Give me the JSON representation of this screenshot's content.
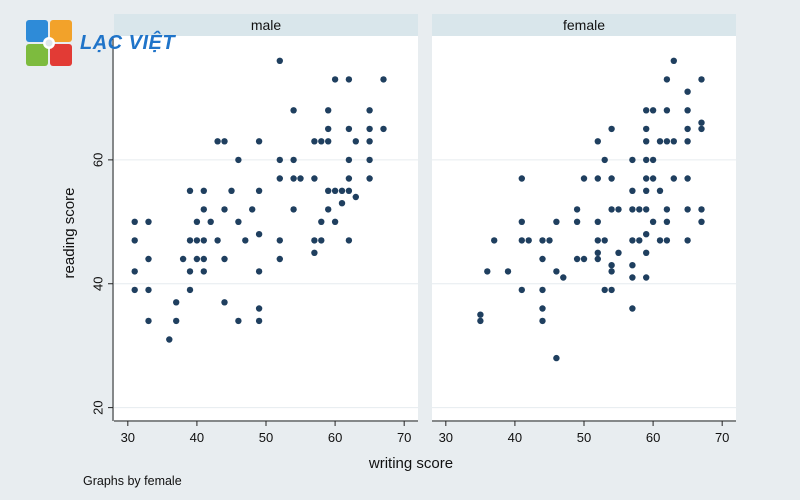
{
  "logo": {
    "text": "LẠC VIỆT",
    "colors": [
      "#2e8bd8",
      "#f2a22a",
      "#7dbb3e",
      "#e23b35"
    ]
  },
  "footnote": "Graphs by female",
  "chart_data": {
    "type": "scatter",
    "xlabel": "writing score",
    "ylabel": "reading score",
    "xlim": [
      28,
      72
    ],
    "ylim": [
      18,
      80
    ],
    "xticks": [
      30,
      40,
      50,
      60,
      70
    ],
    "yticks": [
      20,
      40,
      60
    ],
    "grid": true,
    "marker_color": "#1f3f5f",
    "panel_header_color": "#d9e6eb",
    "panels": [
      {
        "title": "male",
        "points": [
          [
            31,
            50
          ],
          [
            31,
            47
          ],
          [
            31,
            42
          ],
          [
            31,
            39
          ],
          [
            33,
            50
          ],
          [
            33,
            44
          ],
          [
            33,
            39
          ],
          [
            33,
            34
          ],
          [
            36,
            31
          ],
          [
            37,
            37
          ],
          [
            37,
            34
          ],
          [
            38,
            44
          ],
          [
            39,
            47
          ],
          [
            39,
            42
          ],
          [
            39,
            39
          ],
          [
            39,
            55
          ],
          [
            40,
            50
          ],
          [
            40,
            47
          ],
          [
            40,
            44
          ],
          [
            41,
            55
          ],
          [
            41,
            52
          ],
          [
            41,
            47
          ],
          [
            41,
            44
          ],
          [
            41,
            42
          ],
          [
            42,
            50
          ],
          [
            43,
            63
          ],
          [
            43,
            47
          ],
          [
            44,
            63
          ],
          [
            44,
            52
          ],
          [
            44,
            44
          ],
          [
            44,
            37
          ],
          [
            45,
            55
          ],
          [
            46,
            60
          ],
          [
            46,
            50
          ],
          [
            46,
            34
          ],
          [
            47,
            47
          ],
          [
            48,
            52
          ],
          [
            49,
            63
          ],
          [
            49,
            55
          ],
          [
            49,
            48
          ],
          [
            49,
            42
          ],
          [
            49,
            36
          ],
          [
            49,
            34
          ],
          [
            52,
            76
          ],
          [
            52,
            60
          ],
          [
            52,
            57
          ],
          [
            52,
            47
          ],
          [
            52,
            44
          ],
          [
            54,
            68
          ],
          [
            54,
            60
          ],
          [
            54,
            57
          ],
          [
            54,
            52
          ],
          [
            55,
            57
          ],
          [
            57,
            63
          ],
          [
            57,
            57
          ],
          [
            57,
            47
          ],
          [
            57,
            45
          ],
          [
            58,
            63
          ],
          [
            58,
            50
          ],
          [
            58,
            47
          ],
          [
            59,
            68
          ],
          [
            59,
            65
          ],
          [
            59,
            63
          ],
          [
            59,
            55
          ],
          [
            59,
            52
          ],
          [
            60,
            73
          ],
          [
            60,
            55
          ],
          [
            60,
            50
          ],
          [
            61,
            55
          ],
          [
            61,
            53
          ],
          [
            62,
            73
          ],
          [
            62,
            65
          ],
          [
            62,
            60
          ],
          [
            62,
            57
          ],
          [
            62,
            55
          ],
          [
            62,
            47
          ],
          [
            63,
            63
          ],
          [
            63,
            54
          ],
          [
            65,
            68
          ],
          [
            65,
            65
          ],
          [
            65,
            63
          ],
          [
            65,
            60
          ],
          [
            65,
            57
          ],
          [
            67,
            73
          ],
          [
            67,
            65
          ]
        ]
      },
      {
        "title": "female",
        "points": [
          [
            35,
            35
          ],
          [
            35,
            34
          ],
          [
            36,
            42
          ],
          [
            37,
            47
          ],
          [
            39,
            42
          ],
          [
            41,
            57
          ],
          [
            41,
            50
          ],
          [
            41,
            47
          ],
          [
            41,
            39
          ],
          [
            42,
            47
          ],
          [
            44,
            47
          ],
          [
            44,
            44
          ],
          [
            44,
            39
          ],
          [
            44,
            36
          ],
          [
            44,
            34
          ],
          [
            45,
            47
          ],
          [
            46,
            50
          ],
          [
            46,
            42
          ],
          [
            46,
            28
          ],
          [
            47,
            41
          ],
          [
            49,
            52
          ],
          [
            49,
            50
          ],
          [
            49,
            44
          ],
          [
            50,
            57
          ],
          [
            50,
            44
          ],
          [
            52,
            63
          ],
          [
            52,
            57
          ],
          [
            52,
            50
          ],
          [
            52,
            47
          ],
          [
            52,
            45
          ],
          [
            52,
            44
          ],
          [
            53,
            60
          ],
          [
            53,
            47
          ],
          [
            53,
            39
          ],
          [
            54,
            65
          ],
          [
            54,
            57
          ],
          [
            54,
            52
          ],
          [
            54,
            43
          ],
          [
            54,
            42
          ],
          [
            54,
            39
          ],
          [
            55,
            52
          ],
          [
            55,
            45
          ],
          [
            57,
            60
          ],
          [
            57,
            55
          ],
          [
            57,
            52
          ],
          [
            57,
            47
          ],
          [
            57,
            43
          ],
          [
            57,
            41
          ],
          [
            57,
            36
          ],
          [
            58,
            52
          ],
          [
            58,
            47
          ],
          [
            59,
            68
          ],
          [
            59,
            65
          ],
          [
            59,
            63
          ],
          [
            59,
            60
          ],
          [
            59,
            57
          ],
          [
            59,
            55
          ],
          [
            59,
            52
          ],
          [
            59,
            48
          ],
          [
            59,
            45
          ],
          [
            59,
            41
          ],
          [
            60,
            68
          ],
          [
            60,
            60
          ],
          [
            60,
            57
          ],
          [
            60,
            50
          ],
          [
            61,
            63
          ],
          [
            61,
            55
          ],
          [
            61,
            47
          ],
          [
            62,
            73
          ],
          [
            62,
            68
          ],
          [
            62,
            63
          ],
          [
            62,
            52
          ],
          [
            62,
            50
          ],
          [
            62,
            47
          ],
          [
            63,
            76
          ],
          [
            63,
            63
          ],
          [
            63,
            57
          ],
          [
            65,
            71
          ],
          [
            65,
            68
          ],
          [
            65,
            65
          ],
          [
            65,
            63
          ],
          [
            65,
            57
          ],
          [
            65,
            52
          ],
          [
            65,
            47
          ],
          [
            67,
            73
          ],
          [
            67,
            66
          ],
          [
            67,
            65
          ],
          [
            67,
            52
          ],
          [
            67,
            50
          ]
        ]
      }
    ]
  }
}
